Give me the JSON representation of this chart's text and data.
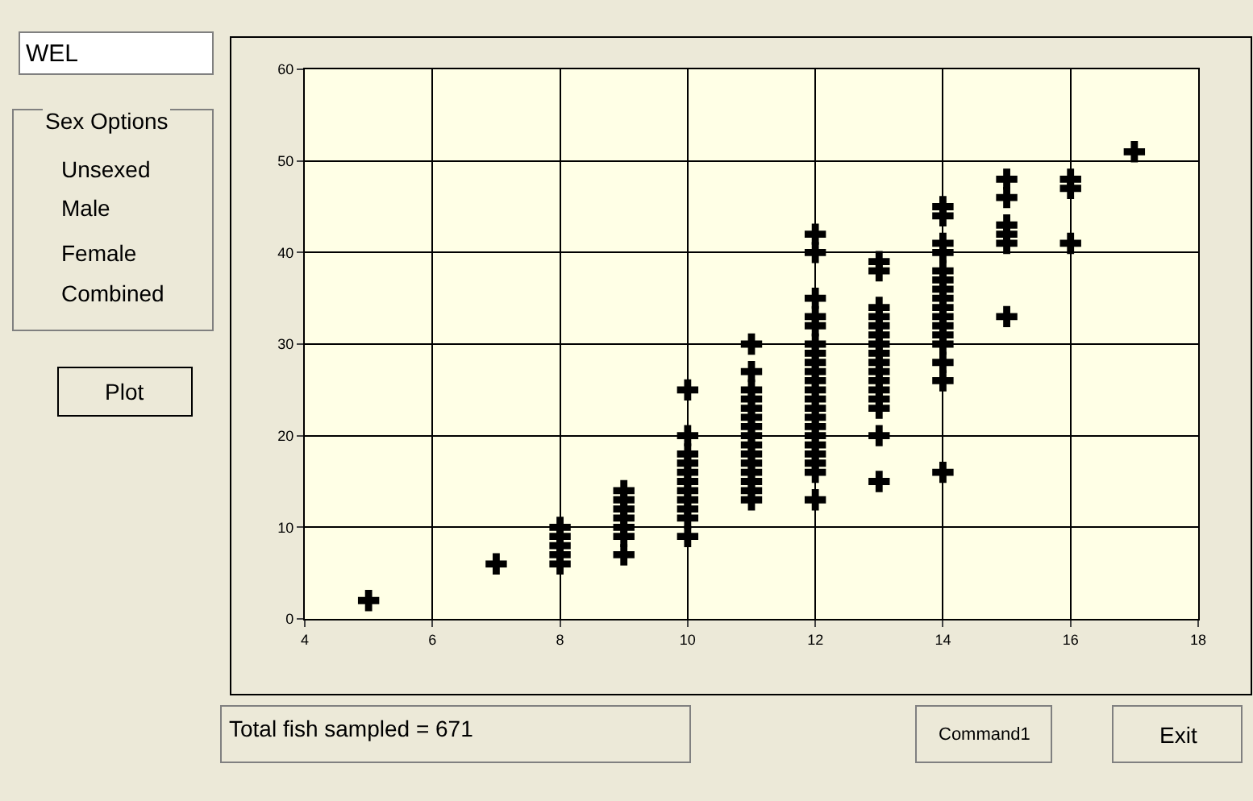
{
  "chart_data": {
    "type": "scatter",
    "x": [
      5,
      7,
      8,
      8,
      8,
      8,
      8,
      9,
      9,
      9,
      9,
      9,
      9,
      9,
      10,
      10,
      10,
      10,
      10,
      10,
      10,
      10,
      10,
      10,
      10,
      11,
      11,
      11,
      11,
      11,
      11,
      11,
      11,
      11,
      11,
      11,
      11,
      11,
      11,
      11,
      12,
      12,
      12,
      12,
      12,
      12,
      12,
      12,
      12,
      12,
      12,
      12,
      12,
      12,
      12,
      12,
      12,
      12,
      12,
      12,
      12,
      13,
      13,
      13,
      13,
      13,
      13,
      13,
      13,
      13,
      13,
      13,
      13,
      13,
      13,
      13,
      13,
      14,
      14,
      14,
      14,
      14,
      14,
      14,
      14,
      14,
      14,
      14,
      14,
      14,
      14,
      14,
      14,
      15,
      15,
      15,
      15,
      15,
      15,
      16,
      16,
      16,
      17
    ],
    "values": [
      2,
      6,
      10,
      9,
      8,
      7,
      6,
      14,
      13,
      12,
      11,
      10,
      9,
      7,
      25,
      20,
      18,
      17,
      16,
      15,
      14,
      13,
      12,
      11,
      9,
      30,
      27,
      25,
      24,
      23,
      22,
      21,
      20,
      19,
      18,
      17,
      16,
      15,
      14,
      13,
      42,
      40,
      35,
      33,
      32,
      30,
      29,
      28,
      27,
      26,
      25,
      24,
      23,
      22,
      21,
      20,
      19,
      18,
      17,
      16,
      13,
      39,
      38,
      34,
      33,
      32,
      31,
      30,
      29,
      28,
      27,
      26,
      25,
      24,
      23,
      20,
      15,
      45,
      44,
      41,
      40,
      38,
      37,
      36,
      35,
      34,
      33,
      32,
      31,
      30,
      28,
      26,
      16,
      48,
      46,
      43,
      42,
      41,
      33,
      48,
      47,
      41,
      51
    ],
    "color": "#000000",
    "marker": "cross",
    "xlim": [
      4,
      18
    ],
    "xticks": [
      4,
      6,
      8,
      10,
      12,
      14,
      16,
      18
    ],
    "ylim": [
      0,
      60
    ],
    "yticks": [
      0,
      10,
      20,
      30,
      40,
      50,
      60
    ],
    "grid": true,
    "annotations": [
      "WEL",
      "Sex Options",
      "Unsexed",
      "Male",
      "Female",
      "Combined",
      "Plot",
      "Total fish sampled = 671",
      "Command1",
      "Exit"
    ]
  }
}
